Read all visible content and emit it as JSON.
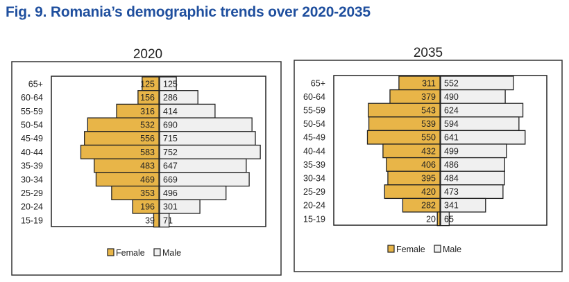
{
  "figure_title": "Fig. 9. Romania’s demographic trends over 2020-2035",
  "colors": {
    "female": "#e8b548",
    "male": "#f0f0f0",
    "title": "#1f4f9e",
    "outline": "#222222"
  },
  "chart_data": [
    {
      "type": "bar",
      "orientation": "horizontal-pyramid",
      "title": "2020",
      "categories": [
        "65+",
        "60-64",
        "55-59",
        "50-54",
        "45-49",
        "40-44",
        "35-39",
        "30-34",
        "25-29",
        "20-24",
        "15-19"
      ],
      "series": [
        {
          "name": "Female",
          "values": [
            125,
            156,
            316,
            532,
            556,
            583,
            483,
            469,
            353,
            196,
            39
          ]
        },
        {
          "name": "Male",
          "values": [
            125,
            286,
            414,
            690,
            715,
            752,
            647,
            669,
            496,
            301,
            71
          ]
        }
      ],
      "legend": "bottom",
      "grid": false
    },
    {
      "type": "bar",
      "orientation": "horizontal-pyramid",
      "title": "2035",
      "categories": [
        "65+",
        "60-64",
        "55-59",
        "50-54",
        "45-49",
        "40-44",
        "35-39",
        "30-34",
        "25-29",
        "20-24",
        "15-19"
      ],
      "series": [
        {
          "name": "Female",
          "values": [
            311,
            379,
            543,
            539,
            550,
            432,
            406,
            395,
            420,
            282,
            20
          ]
        },
        {
          "name": "Male",
          "values": [
            552,
            490,
            624,
            594,
            641,
            499,
            486,
            484,
            473,
            341,
            65
          ]
        }
      ],
      "legend": "bottom",
      "grid": false
    }
  ]
}
